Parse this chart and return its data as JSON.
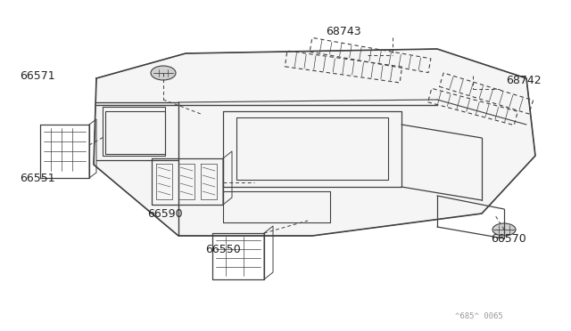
{
  "background_color": "#ffffff",
  "line_color": "#404040",
  "label_color": "#222222",
  "watermark": "^685^ 0065",
  "font_size_labels": 9,
  "line_width": 1.0
}
